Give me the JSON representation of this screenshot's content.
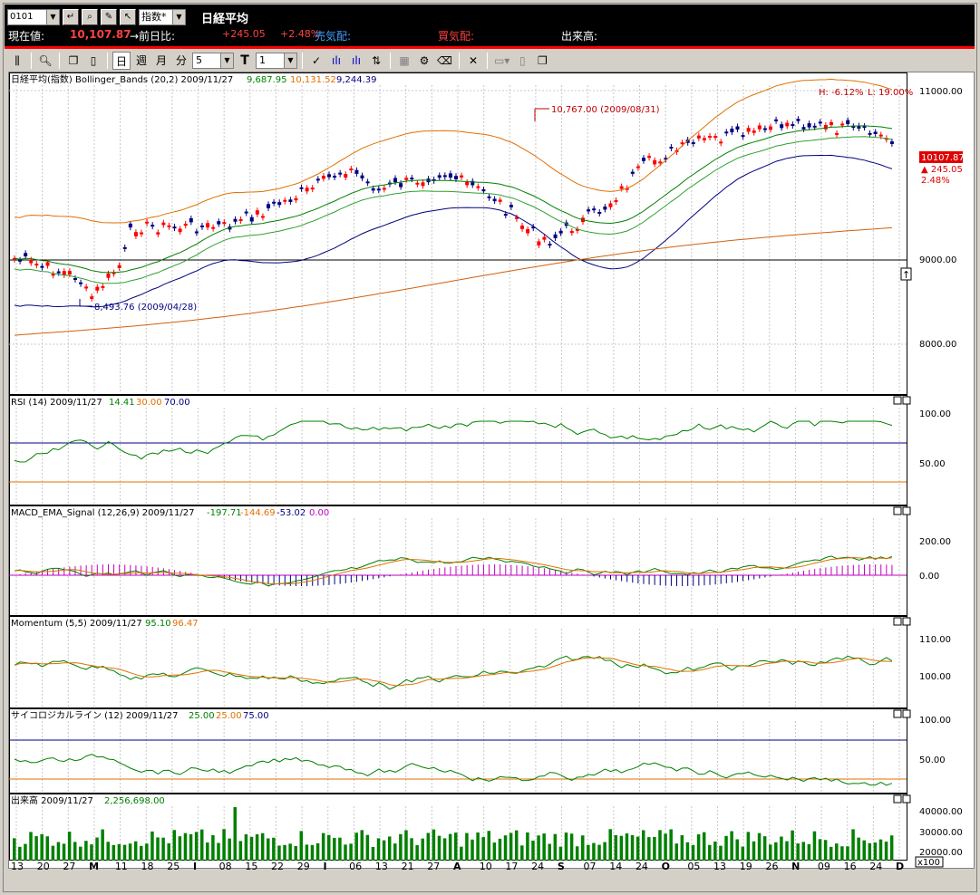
{
  "header": {
    "code": "0101",
    "index_select": "指数*",
    "title": "日経平均",
    "current_label": "現在値:",
    "current_value": "10,107.87",
    "prev_label": "→前日比:",
    "change": "+245.05",
    "change_pct": "+2.48%",
    "sell_label": "売気配:",
    "buy_label": "買気配:",
    "volume_label": "出来高:"
  },
  "toolbar": {
    "day": "日",
    "week": "週",
    "month": "月",
    "minute": "分",
    "interval_value": "5",
    "t_label": "T",
    "t_value": "1"
  },
  "colors": {
    "up": "#ff0000",
    "down": "#000080",
    "band": "#e07000",
    "mid": "#008000",
    "ma": "#008000"
  },
  "main_chart": {
    "legend_name": "日経平均(指数) Bollinger_Bands (20,2) 2009/11/27",
    "legend_v1": "9,687.95",
    "legend_v2": "10,131.52",
    "legend_v3": "9,244.39",
    "hl_h": "H: -6.12%",
    "hl_l": "L: 19.00%",
    "high_note": "10,767.00 (2009/08/31)",
    "low_note": "8,493.76 (2009/04/28)",
    "price_tag": "10107.87",
    "price_change": "▲ 245.05",
    "price_pct": "2.48%",
    "y_labels": [
      "11000.00",
      "9000.00",
      "8000.00"
    ]
  },
  "rsi": {
    "legend_name": "RSI (14) 2009/11/27",
    "v1": "14.41",
    "v2": "30.00",
    "v3": "70.00",
    "y_labels": [
      "100.00",
      "50.00"
    ]
  },
  "macd": {
    "legend_name": "MACD_EMA_Signal (12,26,9) 2009/11/27",
    "v1": "-197.71",
    "v2": "-144.69",
    "v3": "-53.02",
    "v4": "0.00",
    "y_labels": [
      "200.00",
      "0.00"
    ]
  },
  "momentum": {
    "legend_name": "Momentum (5,5) 2009/11/27",
    "v1": "95.10",
    "v2": "96.47",
    "y_labels": [
      "110.00",
      "100.00"
    ]
  },
  "psy": {
    "legend_name": "サイコロジカルライン (12) 2009/11/27",
    "v1": "25.00",
    "v2": "25.00",
    "v3": "75.00",
    "y_labels": [
      "100.00",
      "50.00"
    ]
  },
  "volume": {
    "legend_name": "出来高 2009/11/27",
    "v1": "2,256,698.00",
    "y_labels": [
      "40000.00",
      "30000.00",
      "20000.00"
    ],
    "unit": "x100"
  },
  "x_axis": {
    "labels": [
      {
        "t": "13",
        "b": false
      },
      {
        "t": "20",
        "b": false
      },
      {
        "t": "27",
        "b": false
      },
      {
        "t": "M",
        "b": true
      },
      {
        "t": "11",
        "b": false
      },
      {
        "t": "18",
        "b": false
      },
      {
        "t": "25",
        "b": false
      },
      {
        "t": "J",
        "b": true
      },
      {
        "t": "08",
        "b": false
      },
      {
        "t": "15",
        "b": false
      },
      {
        "t": "22",
        "b": false
      },
      {
        "t": "29",
        "b": false
      },
      {
        "t": "J",
        "b": true
      },
      {
        "t": "06",
        "b": false
      },
      {
        "t": "13",
        "b": false
      },
      {
        "t": "21",
        "b": false
      },
      {
        "t": "27",
        "b": false
      },
      {
        "t": "A",
        "b": true
      },
      {
        "t": "10",
        "b": false
      },
      {
        "t": "17",
        "b": false
      },
      {
        "t": "24",
        "b": false
      },
      {
        "t": "S",
        "b": true
      },
      {
        "t": "07",
        "b": false
      },
      {
        "t": "14",
        "b": false
      },
      {
        "t": "24",
        "b": false
      },
      {
        "t": "O",
        "b": true
      },
      {
        "t": "05",
        "b": false
      },
      {
        "t": "13",
        "b": false
      },
      {
        "t": "19",
        "b": false
      },
      {
        "t": "26",
        "b": false
      },
      {
        "t": "N",
        "b": true
      },
      {
        "t": "09",
        "b": false
      },
      {
        "t": "16",
        "b": false
      },
      {
        "t": "24",
        "b": false
      },
      {
        "t": "D",
        "b": true
      }
    ]
  }
}
